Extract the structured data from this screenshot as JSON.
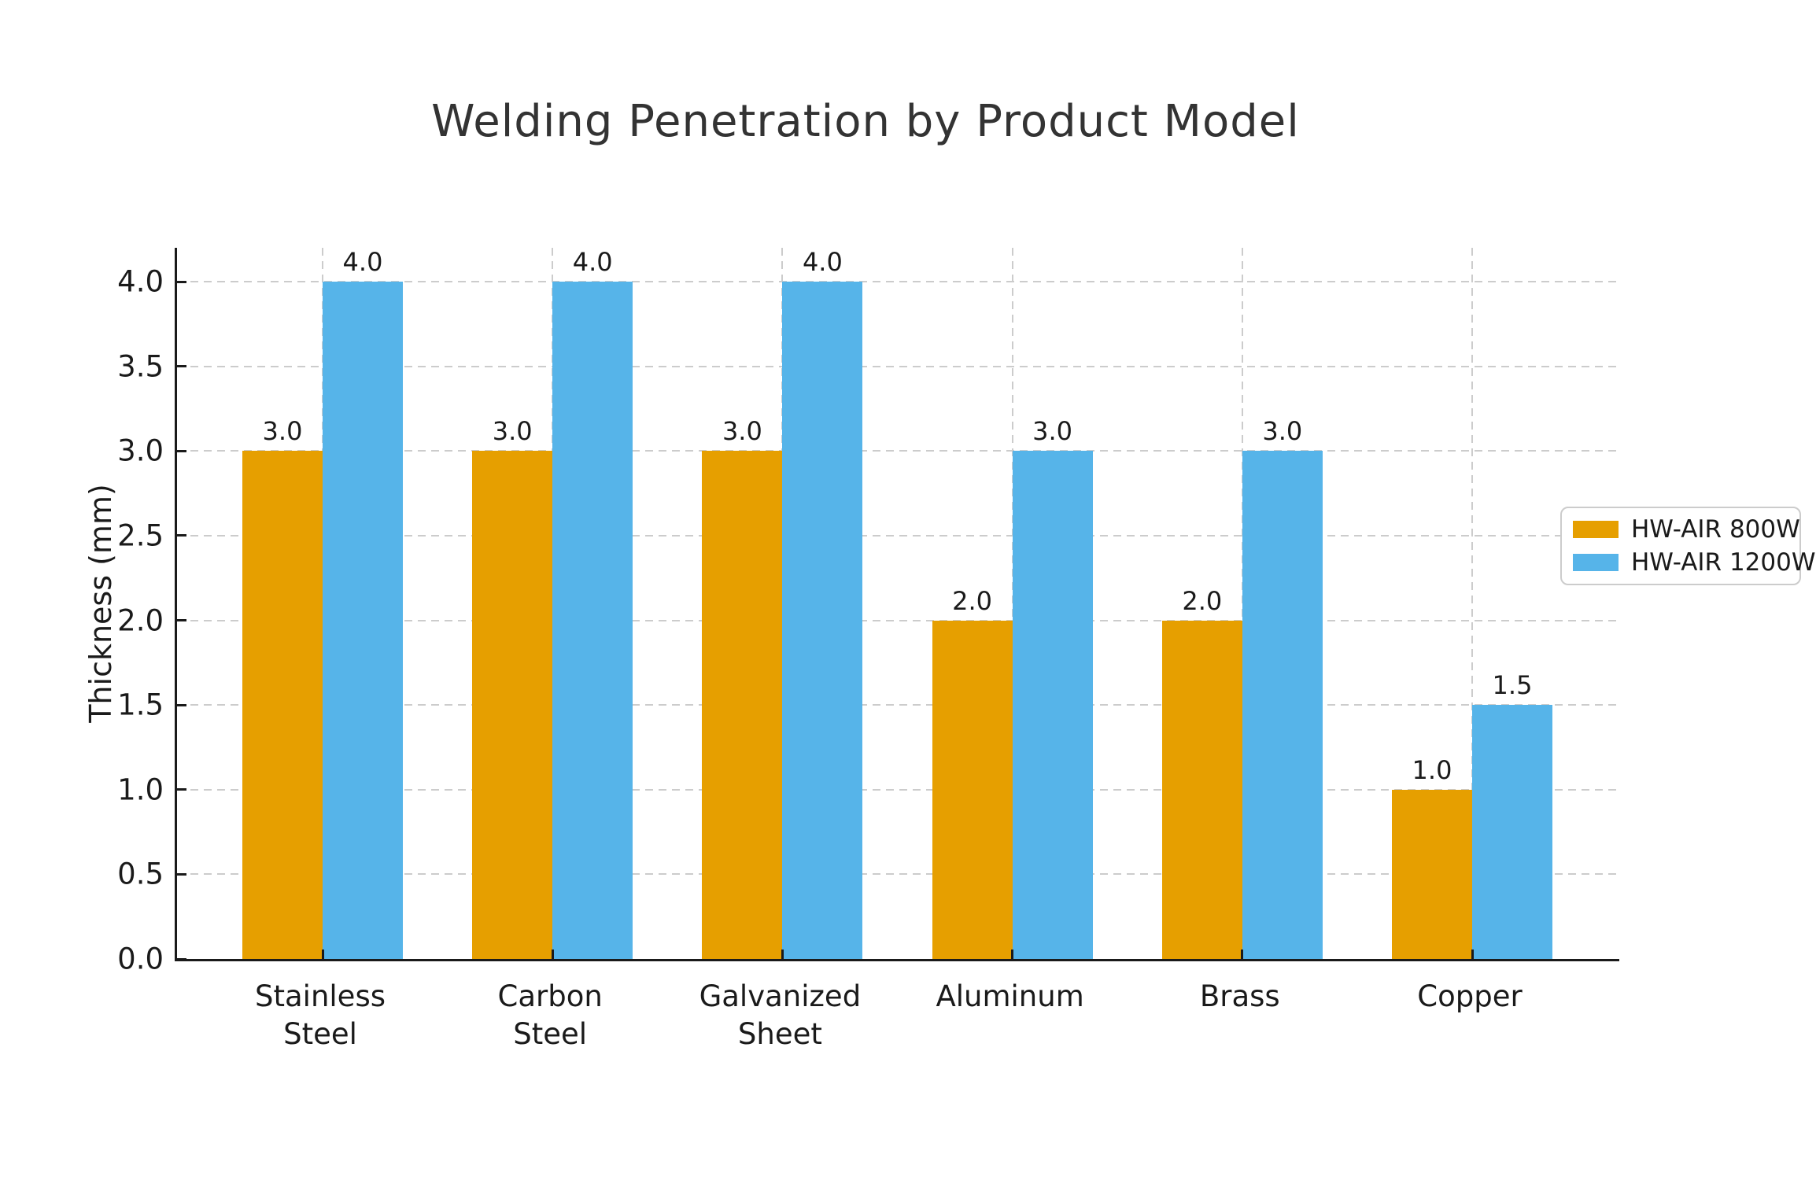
{
  "chart_data": {
    "type": "bar",
    "title": "Welding Penetration by Product Model",
    "xlabel": "",
    "ylabel": "Thickness (mm)",
    "categories": [
      "Stainless\nSteel",
      "Carbon\nSteel",
      "Galvanized\nSheet",
      "Aluminum",
      "Brass",
      "Copper"
    ],
    "series": [
      {
        "name": "HW-AIR 800W",
        "color": "#E69F00",
        "values": [
          3.0,
          3.0,
          3.0,
          2.0,
          2.0,
          1.0
        ]
      },
      {
        "name": "HW-AIR 1200W",
        "color": "#56B4E9",
        "values": [
          4.0,
          4.0,
          4.0,
          3.0,
          3.0,
          1.5
        ]
      }
    ],
    "ylim": [
      0,
      4.2
    ],
    "yticks": [
      0.0,
      0.5,
      1.0,
      1.5,
      2.0,
      2.5,
      3.0,
      3.5,
      4.0
    ],
    "ytick_labels": [
      "0.0",
      "0.5",
      "1.0",
      "1.5",
      "2.0",
      "2.5",
      "3.0",
      "3.5",
      "4.0"
    ],
    "bar_value_labels": {
      "HW-AIR 800W": [
        "3.0",
        "3.0",
        "3.0",
        "2.0",
        "2.0",
        "1.0"
      ],
      "HW-AIR 1200W": [
        "4.0",
        "4.0",
        "4.0",
        "3.0",
        "3.0",
        "1.5"
      ]
    },
    "grid": true,
    "grid_style": "dashed",
    "legend_position": "upper right",
    "colors": {
      "grid": "#cccccc",
      "axis": "#1a1a1a",
      "text": "#1a1a1a",
      "title": "#333333",
      "background": "#ffffff"
    }
  }
}
